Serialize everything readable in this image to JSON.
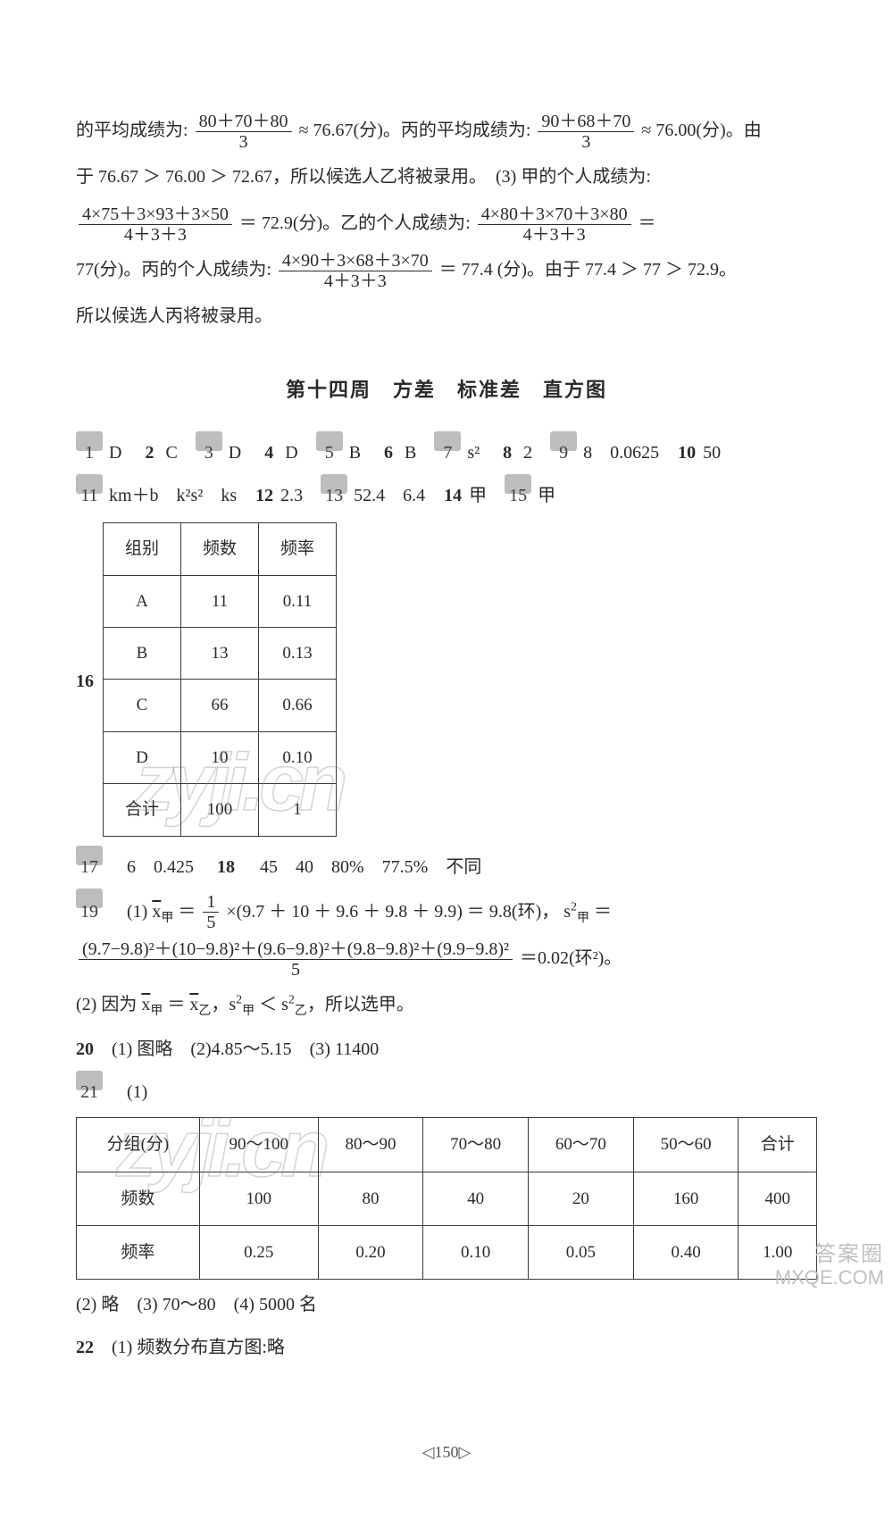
{
  "top_solution": {
    "line1_a": "的平均成绩为:",
    "frac1_num": "80＋70＋80",
    "frac1_den": "3",
    "line1_b": "≈ 76.67(分)。丙的平均成绩为:",
    "frac2_num": "90＋68＋70",
    "frac2_den": "3",
    "line1_c": "≈ 76.00(分)。由",
    "line2": "于 76.67 ＞ 76.00 ＞ 72.67，所以候选人乙将被录用。　(3) 甲的个人成绩为:",
    "frac3_num": "4×75＋3×93＋3×50",
    "frac3_den": "4＋3＋3",
    "line3_mid": "＝ 72.9(分)。乙的个人成绩为:",
    "frac4_num": "4×80＋3×70＋3×80",
    "frac4_den": "4＋3＋3",
    "line3_end": "＝",
    "line4_a": "77(分)。丙的个人成绩为:",
    "frac5_num": "4×90＋3×68＋3×70",
    "frac5_den": "4＋3＋3",
    "line4_b": "＝ 77.4 (分)。由于 77.4 ＞ 77 ＞ 72.9。",
    "line5": "所以候选人丙将被录用。"
  },
  "section_title": "第十四周　方差　标准差　直方图",
  "answers_row1": [
    {
      "n": "1",
      "box": true,
      "v": "D"
    },
    {
      "n": "2",
      "box": false,
      "v": "C"
    },
    {
      "n": "3",
      "box": true,
      "v": "D"
    },
    {
      "n": "4",
      "box": false,
      "v": "D"
    },
    {
      "n": "5",
      "box": true,
      "v": "B"
    },
    {
      "n": "6",
      "box": false,
      "v": "B"
    },
    {
      "n": "7",
      "box": true,
      "v": "s²"
    },
    {
      "n": "8",
      "box": false,
      "v": "2"
    },
    {
      "n": "9",
      "box": true,
      "v": "8　0.0625"
    },
    {
      "n": "10",
      "box": false,
      "v": "50"
    }
  ],
  "answers_row2": [
    {
      "n": "11",
      "box": true,
      "v": "km＋b　k²s²　ks"
    },
    {
      "n": "12",
      "box": false,
      "v": "2.3"
    },
    {
      "n": "13",
      "box": true,
      "v": "52.4　6.4"
    },
    {
      "n": "14",
      "box": false,
      "v": "甲"
    },
    {
      "n": "15",
      "box": true,
      "v": "甲"
    }
  ],
  "q16_label": "16",
  "table16": {
    "headers": [
      "组别",
      "频数",
      "频率"
    ],
    "rows": [
      [
        "A",
        "11",
        "0.11"
      ],
      [
        "B",
        "13",
        "0.13"
      ],
      [
        "C",
        "66",
        "0.66"
      ],
      [
        "D",
        "10",
        "0.10"
      ],
      [
        "合计",
        "100",
        "1"
      ]
    ]
  },
  "q17_18": "17　6　0.425　18　45　40　80%　77.5%　不同",
  "q19": {
    "prefix": "19　(1) ",
    "xbar": "x̄甲",
    "eq1_a": " ＝ ",
    "frac_a_num": "1",
    "frac_a_den": "5",
    "eq1_b": "×(9.7 ＋ 10 ＋ 9.6 ＋ 9.8 ＋ 9.9) ＝ 9.8(环)，",
    "s2": "s²甲",
    "eq1_c": " ＝",
    "bigfrac_num": "(9.7−9.8)²＋(10−9.8)²＋(9.6−9.8)²＋(9.8−9.8)²＋(9.9−9.8)²",
    "bigfrac_den": "5",
    "eq2_end": "＝0.02(环²)。",
    "part2": "(2) 因为 x̄甲 ＝ x̄乙，s²甲 ＜ s²乙，所以选甲。"
  },
  "q20": "20　(1) 图略　(2)4.85～5.15　(3) 11400",
  "q21_label": "21　(1)",
  "table21": {
    "headers": [
      "分组(分)",
      "90～100",
      "80～90",
      "70～80",
      "60～70",
      "50～60",
      "合计"
    ],
    "rows": [
      [
        "频数",
        "100",
        "80",
        "40",
        "20",
        "160",
        "400"
      ],
      [
        "频率",
        "0.25",
        "0.20",
        "0.10",
        "0.05",
        "0.40",
        "1.00"
      ]
    ]
  },
  "q21_rest": "(2) 略　(3) 70～80　(4) 5000 名",
  "q22": "22　(1) 频数分布直方图:略",
  "page_footer": "◁150▷",
  "watermarks": {
    "wm1": "zyji.cn",
    "wm2": "zyji.cn",
    "corner_cn": "答案圈",
    "corner_en": "MXQE.COM"
  },
  "colors": {
    "text": "#2a2a2a",
    "bg": "#ffffff",
    "qbox_bg": "#bdbdbd",
    "wm": "rgba(120,120,120,0.28)"
  }
}
